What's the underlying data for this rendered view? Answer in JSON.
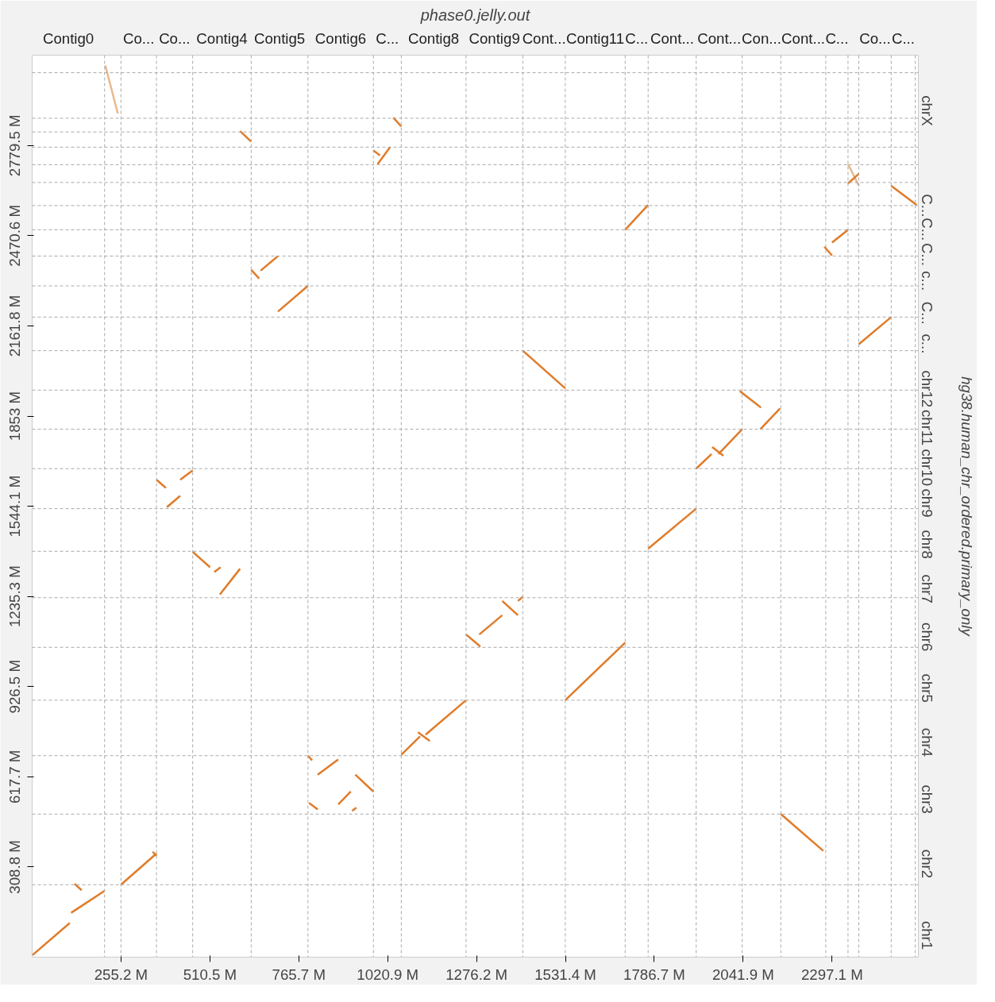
{
  "chart_data": {
    "type": "line",
    "title": "phase0.jelly.out",
    "y2label": "hg38.human_chr_ordered.primary_only",
    "xlim": [
      0,
      2545
    ],
    "ylim": [
      0,
      3089
    ],
    "xticks": [
      {
        "value": 255.2,
        "label": "255.2 M"
      },
      {
        "value": 510.5,
        "label": "510.5 M"
      },
      {
        "value": 765.7,
        "label": "765.7 M"
      },
      {
        "value": 1020.9,
        "label": "1020.9 M"
      },
      {
        "value": 1276.2,
        "label": "1276.2 M"
      },
      {
        "value": 1531.4,
        "label": "1531.4 M"
      },
      {
        "value": 1786.7,
        "label": "1786.7 M"
      },
      {
        "value": 2041.9,
        "label": "2041.9 M"
      },
      {
        "value": 2297.1,
        "label": "2297.1 M"
      }
    ],
    "yticks": [
      {
        "value": 308.8,
        "label": "308.8 M"
      },
      {
        "value": 617.7,
        "label": "617.7 M"
      },
      {
        "value": 926.5,
        "label": "926.5 M"
      },
      {
        "value": 1235.3,
        "label": "1235.3 M"
      },
      {
        "value": 1544.1,
        "label": "1544.1 M"
      },
      {
        "value": 1853,
        "label": "1853 M"
      },
      {
        "value": 2161.8,
        "label": "2161.8 M"
      },
      {
        "value": 2470.6,
        "label": "2470.6 M"
      },
      {
        "value": 2779.5,
        "label": "2779.5 M"
      }
    ],
    "ref_lines": [
      {
        "axis": "x",
        "value": 208,
        "label": "Contig0",
        "color": "#aaaaaa",
        "line_style": "dashed"
      },
      {
        "axis": "x",
        "value": 255,
        "label": null,
        "color": "#aaaaaa",
        "line_style": "dashed"
      },
      {
        "axis": "x",
        "value": 357,
        "label": "Co...",
        "color": "#aaaaaa",
        "line_style": "dashed"
      },
      {
        "axis": "x",
        "value": 461,
        "label": "Co...",
        "color": "#aaaaaa",
        "line_style": "dashed"
      },
      {
        "axis": "x",
        "value": 629,
        "label": "Contig4",
        "color": "#aaaaaa",
        "line_style": "dashed"
      },
      {
        "axis": "x",
        "value": 792,
        "label": "Contig5",
        "color": "#aaaaaa",
        "line_style": "dashed"
      },
      {
        "axis": "x",
        "value": 980,
        "label": "Contig6",
        "color": "#aaaaaa",
        "line_style": "dashed"
      },
      {
        "axis": "x",
        "value": 1060,
        "label": "C...",
        "color": "#aaaaaa",
        "line_style": "dashed"
      },
      {
        "axis": "x",
        "value": 1246,
        "label": "Contig8",
        "color": "#aaaaaa",
        "line_style": "dashed"
      },
      {
        "axis": "x",
        "value": 1409,
        "label": "Contig9",
        "color": "#aaaaaa",
        "line_style": "dashed"
      },
      {
        "axis": "x",
        "value": 1531,
        "label": "Cont...",
        "color": "#aaaaaa",
        "line_style": "dashed"
      },
      {
        "axis": "x",
        "value": 1703,
        "label": "Contig11",
        "color": "#aaaaaa",
        "line_style": "dashed"
      },
      {
        "axis": "x",
        "value": 1769,
        "label": "C...",
        "color": "#aaaaaa",
        "line_style": "dashed"
      },
      {
        "axis": "x",
        "value": 1907,
        "label": "Cont...",
        "color": "#aaaaaa",
        "line_style": "dashed"
      },
      {
        "axis": "x",
        "value": 2039,
        "label": "Cont...",
        "color": "#aaaaaa",
        "line_style": "dashed"
      },
      {
        "axis": "x",
        "value": 2150,
        "label": "Con...",
        "color": "#aaaaaa",
        "line_style": "dashed"
      },
      {
        "axis": "x",
        "value": 2279,
        "label": "Cont...",
        "color": "#aaaaaa",
        "line_style": "dashed"
      },
      {
        "axis": "x",
        "value": 2343,
        "label": "C...",
        "color": "#aaaaaa",
        "line_style": "dashed"
      },
      {
        "axis": "x",
        "value": 2374,
        "label": null,
        "color": "#aaaaaa",
        "line_style": "dashed"
      },
      {
        "axis": "x",
        "value": 2467,
        "label": "Co...",
        "color": "#aaaaaa",
        "line_style": "dashed"
      },
      {
        "axis": "x",
        "value": 2536,
        "label": "C...",
        "color": "#aaaaaa",
        "line_style": "dashed"
      },
      {
        "axis": "y",
        "value": 248,
        "label": "chr1",
        "color": "#aaaaaa",
        "line_style": "dashed"
      },
      {
        "axis": "y",
        "value": 490,
        "label": "chr2",
        "color": "#aaaaaa",
        "line_style": "dashed"
      },
      {
        "axis": "y",
        "value": 690,
        "label": "chr3",
        "color": "#aaaaaa",
        "line_style": "dashed"
      },
      {
        "axis": "y",
        "value": 880,
        "label": "chr4",
        "color": "#aaaaaa",
        "line_style": "dashed"
      },
      {
        "axis": "y",
        "value": 1061,
        "label": "chr5",
        "color": "#aaaaaa",
        "line_style": "dashed"
      },
      {
        "axis": "y",
        "value": 1231,
        "label": "chr6",
        "color": "#aaaaaa",
        "line_style": "dashed"
      },
      {
        "axis": "y",
        "value": 1390,
        "label": "chr7",
        "color": "#aaaaaa",
        "line_style": "dashed"
      },
      {
        "axis": "y",
        "value": 1536,
        "label": "chr8",
        "color": "#aaaaaa",
        "line_style": "dashed"
      },
      {
        "axis": "y",
        "value": 1673,
        "label": "chr9",
        "color": "#aaaaaa",
        "line_style": "dashed"
      },
      {
        "axis": "y",
        "value": 1808,
        "label": "chr10",
        "color": "#aaaaaa",
        "line_style": "dashed"
      },
      {
        "axis": "y",
        "value": 1942,
        "label": "chr11",
        "color": "#aaaaaa",
        "line_style": "dashed"
      },
      {
        "axis": "y",
        "value": 2077,
        "label": "chr12",
        "color": "#aaaaaa",
        "line_style": "dashed"
      },
      {
        "axis": "y",
        "value": 2192,
        "label": "c...",
        "color": "#aaaaaa",
        "line_style": "dashed"
      },
      {
        "axis": "y",
        "value": 2299,
        "label": "C...",
        "color": "#aaaaaa",
        "line_style": "dashed"
      },
      {
        "axis": "y",
        "value": 2401,
        "label": "c...",
        "color": "#aaaaaa",
        "line_style": "dashed"
      },
      {
        "axis": "y",
        "value": 2491,
        "label": "C...",
        "color": "#aaaaaa",
        "line_style": "dashed"
      },
      {
        "axis": "y",
        "value": 2574,
        "label": "C...",
        "color": "#aaaaaa",
        "line_style": "dashed"
      },
      {
        "axis": "y",
        "value": 2653,
        "label": "C...",
        "color": "#aaaaaa",
        "line_style": "dashed"
      },
      {
        "axis": "y",
        "value": 2714,
        "label": null,
        "color": "#aaaaaa",
        "line_style": "dashed"
      },
      {
        "axis": "y",
        "value": 2774,
        "label": null,
        "color": "#aaaaaa",
        "line_style": "dashed"
      },
      {
        "axis": "y",
        "value": 2826,
        "label": null,
        "color": "#aaaaaa",
        "line_style": "dashed"
      },
      {
        "axis": "y",
        "value": 2873,
        "label": null,
        "color": "#aaaaaa",
        "line_style": "dashed"
      },
      {
        "axis": "y",
        "value": 3029,
        "label": "chrX",
        "color": "#aaaaaa",
        "line_style": "dashed"
      }
    ],
    "grid": false,
    "line_style": "solid",
    "series": [
      {
        "color": "#e07b28",
        "x": [
          1,
          108
        ],
        "values": [
          7,
          117
        ]
      },
      {
        "color": "#e07b28",
        "x": [
          112,
          208
        ],
        "values": [
          152,
          227
        ]
      },
      {
        "color": "#e07b28",
        "x": [
          122,
          142
        ],
        "values": [
          251,
          229
        ]
      },
      {
        "color": "#e07b28",
        "x": [
          255,
          357
        ],
        "values": [
          248,
          355
        ]
      },
      {
        "color": "#e07b28",
        "x": [
          346,
          357
        ],
        "values": [
          361,
          347
        ]
      },
      {
        "color": "#e8b98f",
        "x": [
          210,
          246
        ],
        "values": [
          3054,
          2889
        ]
      },
      {
        "color": "#e07b28",
        "x": [
          597,
          629
        ],
        "values": [
          2829,
          2793
        ]
      },
      {
        "color": "#e07b28",
        "x": [
          629,
          652
        ],
        "values": [
          2354,
          2324
        ]
      },
      {
        "color": "#e07b28",
        "x": [
          656,
          706
        ],
        "values": [
          2351,
          2401
        ]
      },
      {
        "color": "#e07b28",
        "x": [
          706,
          792
        ],
        "values": [
          2211,
          2299
        ]
      },
      {
        "color": "#e07b28",
        "x": [
          357,
          384
        ],
        "values": [
          1635,
          1607
        ]
      },
      {
        "color": "#e07b28",
        "x": [
          387,
          425
        ],
        "values": [
          1541,
          1580
        ]
      },
      {
        "color": "#e07b28",
        "x": [
          425,
          461
        ],
        "values": [
          1635,
          1667
        ]
      },
      {
        "color": "#e07b28",
        "x": [
          461,
          511
        ],
        "values": [
          1388,
          1335
        ]
      },
      {
        "color": "#e07b28",
        "x": [
          523,
          541
        ],
        "values": [
          1319,
          1335
        ]
      },
      {
        "color": "#e07b28",
        "x": [
          539,
          597
        ],
        "values": [
          1242,
          1330
        ]
      },
      {
        "color": "#e07b28",
        "x": [
          792,
          804
        ],
        "values": [
          690,
          674
        ]
      },
      {
        "color": "#e07b28",
        "x": [
          820,
          879
        ],
        "values": [
          625,
          677
        ]
      },
      {
        "color": "#e07b28",
        "x": [
          928,
          980
        ],
        "values": [
          625,
          567
        ]
      },
      {
        "color": "#e07b28",
        "x": [
          795,
          820
        ],
        "values": [
          528,
          506
        ]
      },
      {
        "color": "#e07b28",
        "x": [
          879,
          915
        ],
        "values": [
          523,
          567
        ]
      },
      {
        "color": "#e07b28",
        "x": [
          919,
          931
        ],
        "values": [
          501,
          512
        ]
      },
      {
        "color": "#e07b28",
        "x": [
          980,
          999
        ],
        "values": [
          2763,
          2746
        ]
      },
      {
        "color": "#e07b28",
        "x": [
          992,
          1028
        ],
        "values": [
          2716,
          2774
        ]
      },
      {
        "color": "#e07b28",
        "x": [
          1037,
          1060
        ],
        "values": [
          2875,
          2845
        ]
      },
      {
        "color": "#e07b28",
        "x": [
          1060,
          1114
        ],
        "values": [
          693,
          756
        ]
      },
      {
        "color": "#e07b28",
        "x": [
          1108,
          1142
        ],
        "values": [
          770,
          740
        ]
      },
      {
        "color": "#e07b28",
        "x": [
          1130,
          1246
        ],
        "values": [
          762,
          880
        ]
      },
      {
        "color": "#e07b28",
        "x": [
          1246,
          1287
        ],
        "values": [
          1105,
          1064
        ]
      },
      {
        "color": "#e07b28",
        "x": [
          1284,
          1350
        ],
        "values": [
          1105,
          1171
        ]
      },
      {
        "color": "#e07b28",
        "x": [
          1350,
          1395
        ],
        "values": [
          1220,
          1171
        ]
      },
      {
        "color": "#e07b28",
        "x": [
          1395,
          1409
        ],
        "values": [
          1220,
          1234
        ]
      },
      {
        "color": "#e07b28",
        "x": [
          1409,
          1531
        ],
        "values": [
          2077,
          1948
        ]
      },
      {
        "color": "#e07b28",
        "x": [
          1531,
          1703
        ],
        "values": [
          880,
          1077
        ]
      },
      {
        "color": "#e07b28",
        "x": [
          1703,
          1769
        ],
        "values": [
          2491,
          2576
        ]
      },
      {
        "color": "#e07b28",
        "x": [
          1769,
          1907
        ],
        "values": [
          1399,
          1536
        ]
      },
      {
        "color": "#e07b28",
        "x": [
          1907,
          1951
        ],
        "values": [
          1673,
          1723
        ]
      },
      {
        "color": "#e07b28",
        "x": [
          1953,
          1985
        ],
        "values": [
          1747,
          1717
        ]
      },
      {
        "color": "#e07b28",
        "x": [
          1971,
          2039
        ],
        "values": [
          1723,
          1808
        ]
      },
      {
        "color": "#e07b28",
        "x": [
          2032,
          2093
        ],
        "values": [
          1939,
          1882
        ]
      },
      {
        "color": "#e07b28",
        "x": [
          2091,
          2148
        ],
        "values": [
          1808,
          1879
        ]
      },
      {
        "color": "#e07b28",
        "x": [
          2150,
          2272
        ],
        "values": [
          490,
          364
        ]
      },
      {
        "color": "#e07b28",
        "x": [
          2275,
          2297
        ],
        "values": [
          2433,
          2403
        ]
      },
      {
        "color": "#e07b28",
        "x": [
          2297,
          2343
        ],
        "values": [
          2447,
          2491
        ]
      },
      {
        "color": "#e8b98f",
        "x": [
          2343,
          2374
        ],
        "values": [
          2716,
          2642
        ]
      },
      {
        "color": "#e07b28",
        "x": [
          2343,
          2374
        ],
        "values": [
          2650,
          2683
        ]
      },
      {
        "color": "#e07b28",
        "x": [
          2374,
          2467
        ],
        "values": [
          2099,
          2192
        ]
      },
      {
        "color": "#e07b28",
        "x": [
          2467,
          2540
        ],
        "values": [
          2642,
          2576
        ]
      }
    ]
  }
}
